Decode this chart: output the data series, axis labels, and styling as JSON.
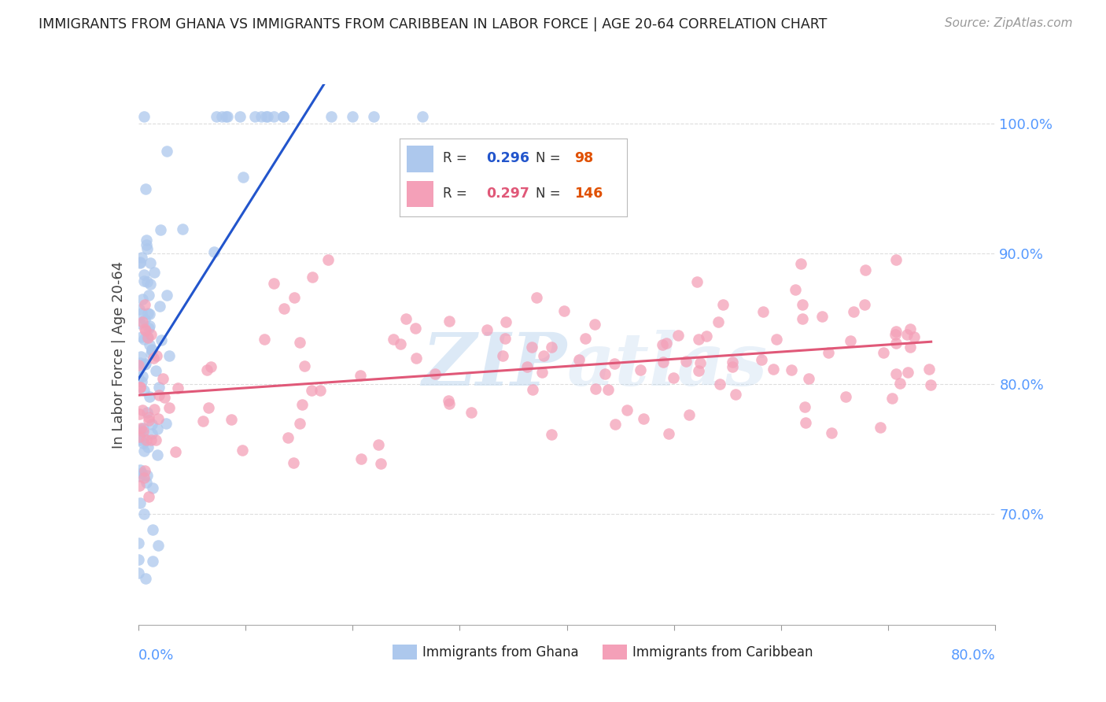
{
  "title": "IMMIGRANTS FROM GHANA VS IMMIGRANTS FROM CARIBBEAN IN LABOR FORCE | AGE 20-64 CORRELATION CHART",
  "source": "Source: ZipAtlas.com",
  "ylabel": "In Labor Force | Age 20-64",
  "legend1_label": "Immigrants from Ghana",
  "legend2_label": "Immigrants from Caribbean",
  "R1": 0.296,
  "N1": 98,
  "R2": 0.297,
  "N2": 146,
  "color_ghana": "#adc8ed",
  "color_caribbean": "#f4a0b8",
  "color_ghana_line": "#2255cc",
  "color_caribbean_line": "#e05878",
  "color_ghana_text": "#2255cc",
  "color_caribbean_text": "#e05878",
  "color_N": "#e05000",
  "watermark_color": "#c0d8f0",
  "axis_label_color": "#5599ff",
  "background_color": "#ffffff",
  "xlim": [
    0.0,
    0.8
  ],
  "ylim": [
    0.615,
    1.03
  ],
  "yticks": [
    0.7,
    0.8,
    0.9,
    1.0
  ],
  "ytick_labels": [
    "70.0%",
    "80.0%",
    "90.0%",
    "100.0%"
  ],
  "xticks": [
    0.0,
    0.1,
    0.2,
    0.3,
    0.4,
    0.5,
    0.6,
    0.7,
    0.8
  ]
}
